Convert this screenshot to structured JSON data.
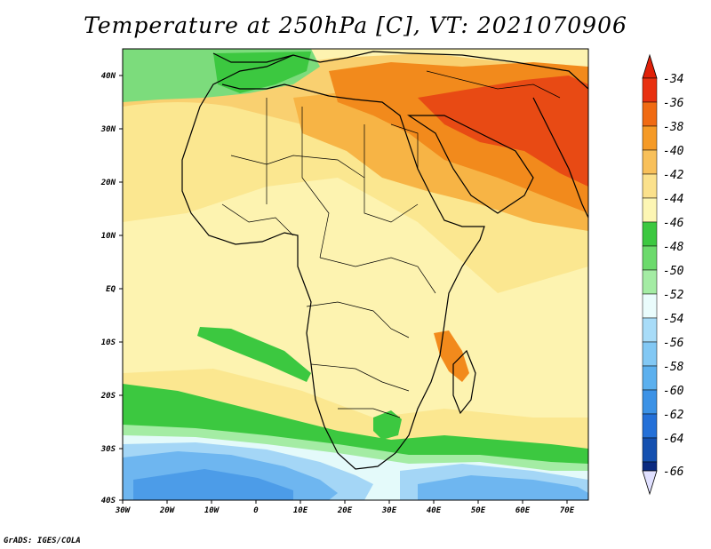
{
  "title": "Temperature at 250hPa [C], VT: 2021070906",
  "credit": "GrADS: IGES/COLA",
  "lat_ticks": [
    "40N",
    "30N",
    "20N",
    "10N",
    "EQ",
    "10S",
    "20S",
    "30S",
    "40S"
  ],
  "lon_ticks": [
    "30W",
    "20W",
    "10W",
    "0",
    "10E",
    "20E",
    "30E",
    "40E",
    "50E",
    "60E",
    "70E"
  ],
  "colorbar": {
    "levels": [
      "-34",
      "-36",
      "-38",
      "-40",
      "-42",
      "-44",
      "-46",
      "-48",
      "-50",
      "-52",
      "-54",
      "-56",
      "-58",
      "-60",
      "-62",
      "-64",
      "-66"
    ],
    "colors": [
      "#e83010",
      "#f06a12",
      "#f59a26",
      "#f8c05a",
      "#fbe18c",
      "#fdf6b4",
      "#3cc840",
      "#6cda6c",
      "#a4eca4",
      "#eafcfc",
      "#a8dcf8",
      "#82c8f4",
      "#5cb0ee",
      "#3c92e6",
      "#2470d8",
      "#1450b0",
      "#0a2a80"
    ],
    "top_arrow_color": "#e02008",
    "bottom_arrow_color": "#e0e0ff"
  },
  "palette": {
    "very_warm": "#e84a14",
    "warm": "#f28a1c",
    "mid_warm": "#f7b445",
    "light_orange": "#f9d070",
    "yellow": "#fbe790",
    "pale_yellow": "#fdf3b0",
    "green": "#3cc840",
    "light_green": "#7cdc7c",
    "very_light_green": "#b8eeb8",
    "cyan_white": "#e4fafa",
    "light_blue": "#a4d6f6",
    "blue": "#6eb6f0",
    "mid_blue": "#4c9ce8"
  }
}
